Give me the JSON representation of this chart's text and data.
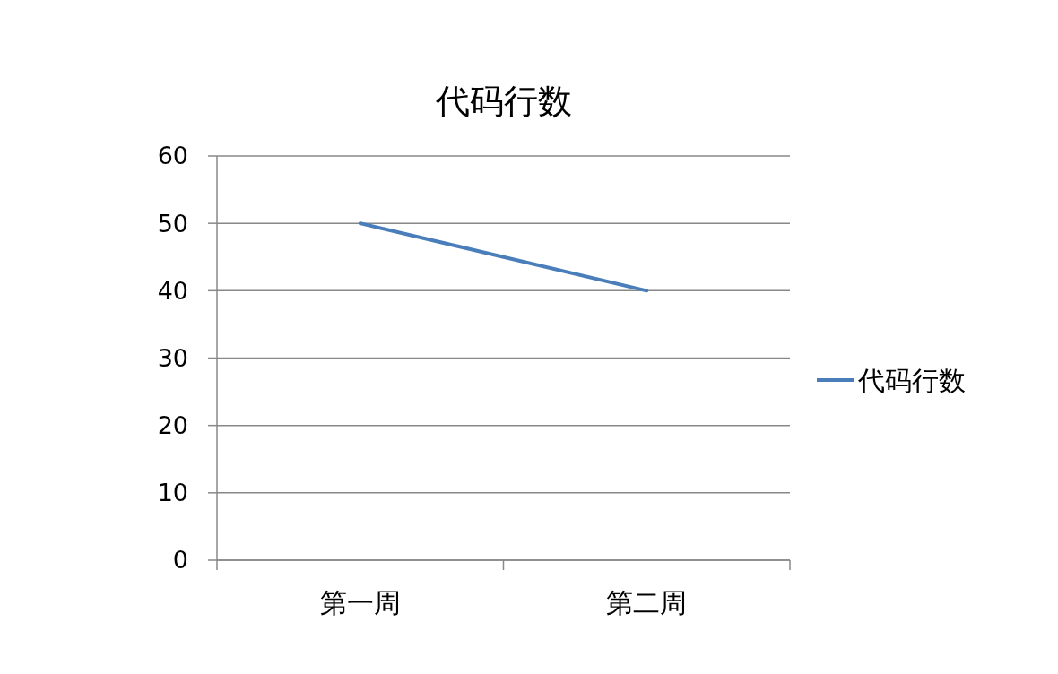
{
  "chart_data": {
    "type": "line",
    "title": "代码行数",
    "categories": [
      "第一周",
      "第二周"
    ],
    "series": [
      {
        "name": "代码行数",
        "color": "#4a7ebb",
        "values": [
          50,
          40
        ]
      }
    ],
    "ylim": [
      0,
      60
    ],
    "yticks": [
      0,
      10,
      20,
      30,
      40,
      50,
      60
    ],
    "grid": "y",
    "legend": "right",
    "marker": "none"
  }
}
